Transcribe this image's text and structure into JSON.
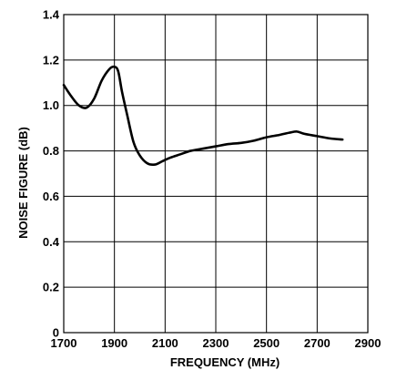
{
  "chart_data": {
    "type": "line",
    "title": "",
    "xlabel": "FREQUENCY (MHz)",
    "ylabel": "NOISE FIGURE (dB)",
    "xlim": [
      1700,
      2900
    ],
    "ylim": [
      0,
      1.4
    ],
    "x_ticks": [
      1700,
      1900,
      2100,
      2300,
      2500,
      2700,
      2900
    ],
    "y_ticks": [
      0,
      0.2,
      0.4,
      0.6,
      0.8,
      1.0,
      1.2,
      1.4
    ],
    "x_tick_labels": [
      "1700",
      "1900",
      "2100",
      "2300",
      "2500",
      "2700",
      "2900"
    ],
    "y_tick_labels": [
      "0",
      "0.2",
      "0.4",
      "0.6",
      "0.8",
      "1.0",
      "1.2",
      "1.4"
    ],
    "grid": true,
    "series": [
      {
        "x": [
          1700,
          1730,
          1760,
          1790,
          1820,
          1850,
          1880,
          1900,
          1915,
          1930,
          1950,
          1975,
          2000,
          2030,
          2060,
          2090,
          2120,
          2160,
          2200,
          2250,
          2300,
          2350,
          2400,
          2450,
          2500,
          2550,
          2590,
          2620,
          2650,
          2700,
          2750,
          2800
        ],
        "y": [
          1.09,
          1.04,
          1.0,
          0.99,
          1.03,
          1.11,
          1.16,
          1.17,
          1.15,
          1.06,
          0.96,
          0.84,
          0.78,
          0.745,
          0.74,
          0.755,
          0.77,
          0.785,
          0.8,
          0.81,
          0.82,
          0.83,
          0.835,
          0.845,
          0.86,
          0.87,
          0.88,
          0.885,
          0.875,
          0.865,
          0.855,
          0.85
        ]
      }
    ]
  }
}
